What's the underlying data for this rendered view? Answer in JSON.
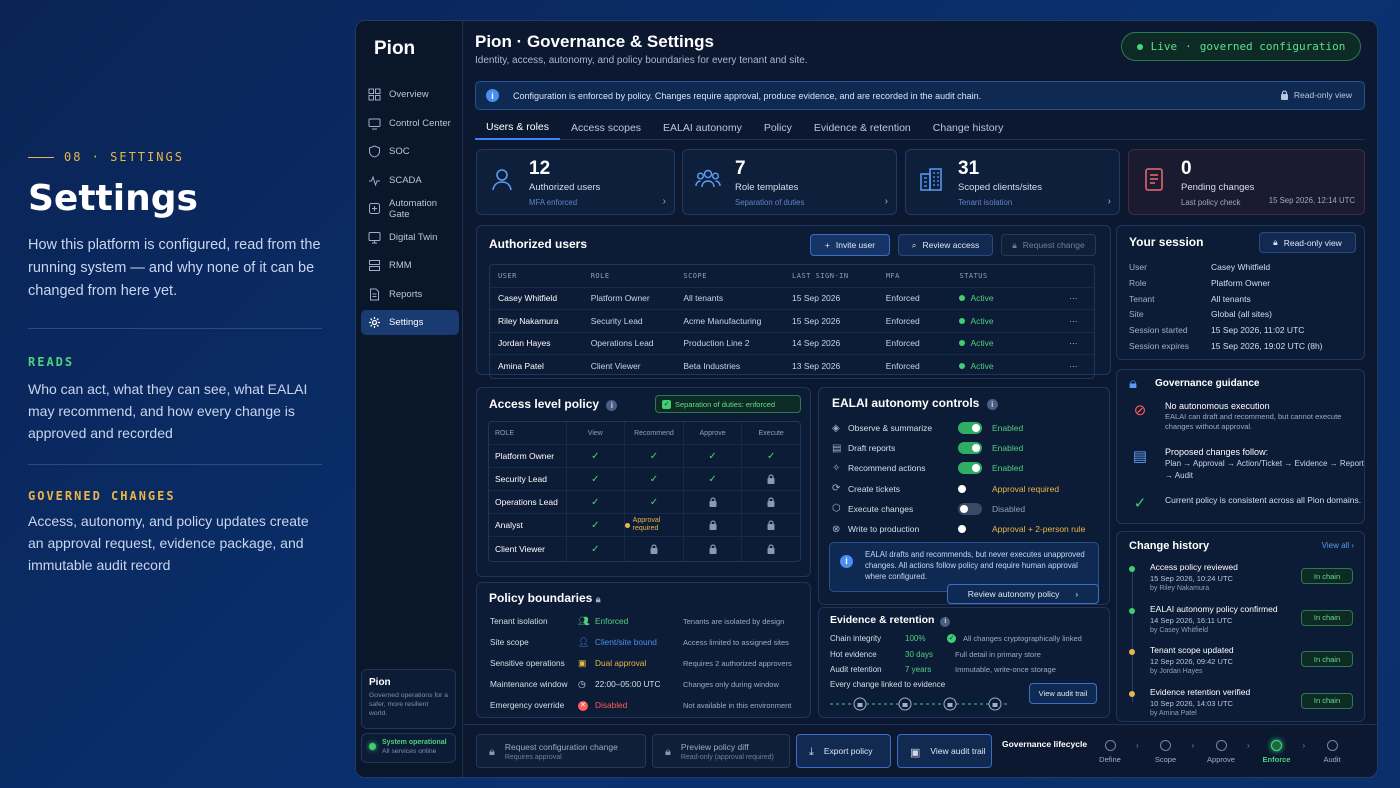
{
  "intro": {
    "section_tag": "08 · SETTINGS",
    "title": "Settings",
    "lead": "How this platform is configured, read from the running system — and why none of it can be changed from here yet.",
    "reads_label": "READS",
    "reads_text": "Who can act, what they can see, what EALAI may recommend, and how every change is approved and recorded",
    "governed_label": "GOVERNED CHANGES",
    "governed_text": "Access, autonomy, and policy updates create an approval request, evidence package, and immutable audit record",
    "colors": {
      "tag": "#e9b64a",
      "reads": "#4fd07e",
      "governed": "#e9b64a"
    }
  },
  "sidebar": {
    "logo": "Pion",
    "items": [
      {
        "label": "Overview",
        "icon": "grid-icon"
      },
      {
        "label": "Control Center",
        "icon": "monitor-icon"
      },
      {
        "label": "SOC",
        "icon": "shield-icon"
      },
      {
        "label": "SCADA",
        "icon": "pulse-icon"
      },
      {
        "label": "Automation Gate",
        "icon": "gate-icon"
      },
      {
        "label": "Digital Twin",
        "icon": "screen-icon"
      },
      {
        "label": "RMM",
        "icon": "server-icon"
      },
      {
        "label": "Reports",
        "icon": "document-icon"
      },
      {
        "label": "Settings",
        "icon": "gear-icon",
        "active": true
      }
    ],
    "card_title": "Pion",
    "card_text": "Governed operations for a safer, more resilient world.",
    "status_title": "System operational",
    "status_sub": "All services online"
  },
  "header": {
    "title": "Pion  ·  Governance & Settings",
    "subtitle": "Identity, access, autonomy, and policy boundaries for every tenant and site.",
    "live_label": "Live",
    "live_sep": "·",
    "live_text": "governed configuration"
  },
  "banner": {
    "text": "Configuration is enforced by policy. Changes require approval, produce evidence, and are recorded in the audit chain.",
    "readonly": "Read-only view"
  },
  "tabs": [
    "Users & roles",
    "Access scopes",
    "EALAI autonomy",
    "Policy",
    "Evidence & retention",
    "Change history"
  ],
  "stats": [
    {
      "number": "12",
      "label": "Authorized users",
      "sub": "MFA enforced",
      "icon": "user-icon"
    },
    {
      "number": "7",
      "label": "Role templates",
      "sub": "Separation of duties",
      "icon": "users-icon"
    },
    {
      "number": "31",
      "label": "Scoped clients/sites",
      "sub": "Tenant isolation",
      "icon": "buildings-icon"
    },
    {
      "number": "0",
      "label": "Pending changes",
      "sub": "Last policy check",
      "timestamp": "15 Sep 2026, 12:14 UTC",
      "icon": "clipboard-icon"
    }
  ],
  "users": {
    "title": "Authorized users",
    "invite": "Invite user",
    "review": "Review access",
    "request": "Request change",
    "columns": [
      "USER",
      "ROLE",
      "SCOPE",
      "LAST SIGN-IN",
      "MFA",
      "STATUS"
    ],
    "rows": [
      {
        "user": "Casey Whitfield",
        "role": "Platform Owner",
        "scope": "All tenants",
        "last": "15 Sep 2026",
        "mfa": "Enforced",
        "status": "Active"
      },
      {
        "user": "Riley Nakamura",
        "role": "Security Lead",
        "scope": "Acme Manufacturing",
        "last": "15 Sep 2026",
        "mfa": "Enforced",
        "status": "Active"
      },
      {
        "user": "Jordan Hayes",
        "role": "Operations Lead",
        "scope": "Production Line 2",
        "last": "14 Sep 2026",
        "mfa": "Enforced",
        "status": "Active"
      },
      {
        "user": "Amina Patel",
        "role": "Client Viewer",
        "scope": "Beta Industries",
        "last": "13 Sep 2026",
        "mfa": "Enforced",
        "status": "Active"
      }
    ],
    "more": "···"
  },
  "session": {
    "title": "Your session",
    "readonly": "Read-only view",
    "items": [
      {
        "k": "User",
        "v": "Casey Whitfield"
      },
      {
        "k": "Role",
        "v": "Platform Owner"
      },
      {
        "k": "Tenant",
        "v": "All tenants"
      },
      {
        "k": "Site",
        "v": "Global (all sites)"
      },
      {
        "k": "Session started",
        "v": "15 Sep 2026, 11:02 UTC"
      },
      {
        "k": "Session expires",
        "v": "15 Sep 2026, 19:02 UTC (8h)"
      }
    ]
  },
  "access": {
    "title": "Access level policy",
    "badge": "Separation of duties: enforced",
    "columns": [
      "ROLE",
      "View",
      "Recommend",
      "Approve",
      "Execute"
    ],
    "rows": [
      {
        "role": "Platform Owner",
        "cells": [
          "check",
          "check",
          "check",
          "check"
        ]
      },
      {
        "role": "Security Lead",
        "cells": [
          "check",
          "check",
          "check",
          "lock"
        ]
      },
      {
        "role": "Operations Lead",
        "cells": [
          "check",
          "check",
          "lock",
          "lock"
        ]
      },
      {
        "role": "Analyst",
        "cells": [
          "check",
          "approval",
          "lock",
          "lock"
        ]
      },
      {
        "role": "Client Viewer",
        "cells": [
          "check",
          "lock",
          "lock",
          "lock"
        ]
      }
    ],
    "approval_text": "Approval required"
  },
  "autonomy": {
    "title": "EALAI autonomy controls",
    "rows": [
      {
        "name": "Observe & summarize",
        "state": "on",
        "status": "Enabled",
        "icon": "eye-icon"
      },
      {
        "name": "Draft reports",
        "state": "on",
        "status": "Enabled",
        "icon": "document-icon"
      },
      {
        "name": "Recommend actions",
        "state": "on",
        "status": "Enabled",
        "icon": "sparkle-icon"
      },
      {
        "name": "Create tickets",
        "state": "amber",
        "status": "Approval required",
        "icon": "ticket-icon"
      },
      {
        "name": "Execute changes",
        "state": "off",
        "status": "Disabled",
        "icon": "cube-icon"
      },
      {
        "name": "Write to production",
        "state": "amber",
        "status": "Approval + 2-person rule",
        "icon": "block-icon"
      }
    ],
    "note": "EALAI drafts and recommends, but never executes unapproved changes. All actions follow policy and require human approval where configured.",
    "review": "Review autonomy policy",
    "colors": {
      "enabled": "#4fd07e",
      "approval": "#e9b64a",
      "disabled": "#8f9fbd"
    }
  },
  "boundaries": {
    "title": "Policy boundaries",
    "rows": [
      {
        "k": "Tenant isolation",
        "v": "Enforced",
        "d": "Tenants are isolated by design",
        "color": "#4fd07e",
        "icon": "people-icon"
      },
      {
        "k": "Site scope",
        "v": "Client/site bound",
        "d": "Access limited to assigned sites",
        "color": "#4a8ef0",
        "icon": "person-icon"
      },
      {
        "k": "Sensitive operations",
        "v": "Dual approval",
        "d": "Requires 2 authorized approvers",
        "color": "#e9b64a",
        "icon": "approval-icon"
      },
      {
        "k": "Maintenance window",
        "v": "22:00–05:00 UTC",
        "d": "Changes only during window",
        "color": "#d6deec",
        "icon": "clock-icon"
      },
      {
        "k": "Emergency override",
        "v": "Disabled",
        "d": "Not available in this environment",
        "color": "#ff5c5c",
        "icon": "x-circle-icon"
      }
    ]
  },
  "evidence": {
    "title": "Evidence & retention",
    "rows": [
      {
        "k": "Chain integrity",
        "v": "100%",
        "d": "All changes cryptographically linked"
      },
      {
        "k": "Hot evidence",
        "v": "30 days",
        "d": "Full detail in primary store"
      },
      {
        "k": "Audit retention",
        "v": "7 years",
        "d": "Immutable, write-once storage"
      }
    ],
    "link_text": "Every change linked to evidence",
    "button": "View audit trail"
  },
  "guidance": {
    "title": "Governance guidance",
    "items": [
      {
        "title": "No autonomous execution",
        "text": "EALAI can draft and recommend, but cannot execute changes without approval.",
        "icon": "no-entry-icon"
      },
      {
        "title": "Proposed changes follow:",
        "text": "Plan → Approval → Action/Ticket → Evidence → Report → Audit",
        "icon": "flow-doc-icon"
      },
      {
        "title": "",
        "text": "Current policy is consistent across all Pion domains.",
        "icon": "check-icon"
      }
    ]
  },
  "history": {
    "title": "Change history",
    "view_all": "View all",
    "items": [
      {
        "title": "Access policy reviewed",
        "date": "15 Sep 2026, 10:24 UTC",
        "by": "by Riley Nakamura",
        "chip": "In chain",
        "color": "#3fcf72"
      },
      {
        "title": "EALAI autonomy policy confirmed",
        "date": "14 Sep 2026, 16:11 UTC",
        "by": "by Casey Whitfield",
        "chip": "In chain",
        "color": "#3fcf72"
      },
      {
        "title": "Tenant scope updated",
        "date": "12 Sep 2026, 09:42 UTC",
        "by": "by Jordan Hayes",
        "chip": "In chain",
        "color": "#e9b64a"
      },
      {
        "title": "Evidence retention verified",
        "date": "10 Sep 2026, 14:03 UTC",
        "by": "by Amina Patel",
        "chip": "In chain",
        "color": "#e9b64a"
      }
    ]
  },
  "bottom": {
    "request": {
      "title": "Request configuration change",
      "sub": "Requires approval"
    },
    "preview": {
      "title": "Preview policy diff",
      "sub": "Read-only (approval required)"
    },
    "export": "Export policy",
    "audit": "View audit trail",
    "lifecycle_label": "Governance lifecycle",
    "stages": [
      "Define",
      "Scope",
      "Approve",
      "Enforce",
      "Audit"
    ],
    "active_stage": "Enforce"
  }
}
